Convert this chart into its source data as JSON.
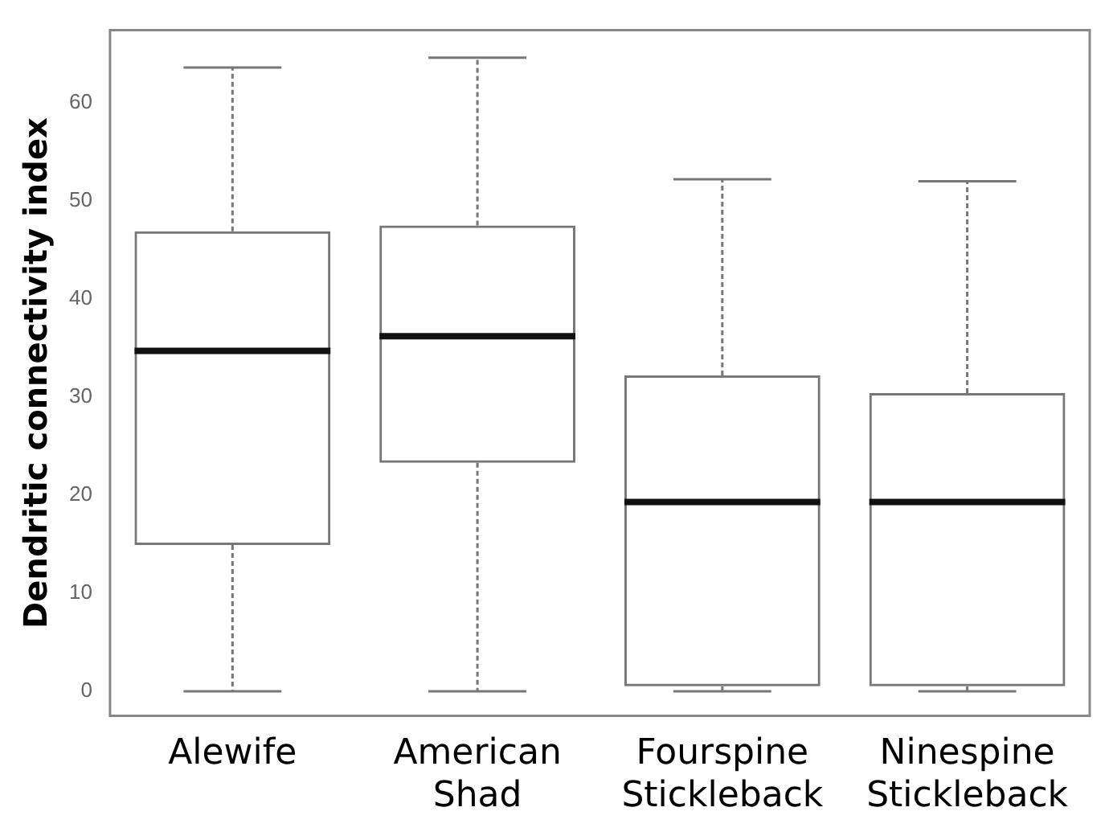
{
  "chart_data": {
    "type": "box",
    "ylabel": "Dendritic connectivity index",
    "categories": [
      "Alewife",
      "American Shad",
      "Fourspine Stickleback",
      "Ninespine Stickleback"
    ],
    "boxes": [
      {
        "low": 0,
        "q1": 14.9,
        "median": 34.7,
        "q3": 46.9,
        "high": 63.6
      },
      {
        "low": 0,
        "q1": 23.3,
        "median": 36.2,
        "q3": 47.5,
        "high": 64.6
      },
      {
        "low": 0,
        "q1": 0.5,
        "median": 19.3,
        "q3": 32.2,
        "high": 52.2
      },
      {
        "low": 0,
        "q1": 0.5,
        "median": 19.3,
        "q3": 30.4,
        "high": 52.0
      }
    ],
    "ylim": [
      -2.5,
      67.4
    ],
    "yticks": [
      0,
      10,
      20,
      30,
      40,
      50,
      60
    ],
    "grid": false,
    "legend": false,
    "color": "#777777"
  }
}
